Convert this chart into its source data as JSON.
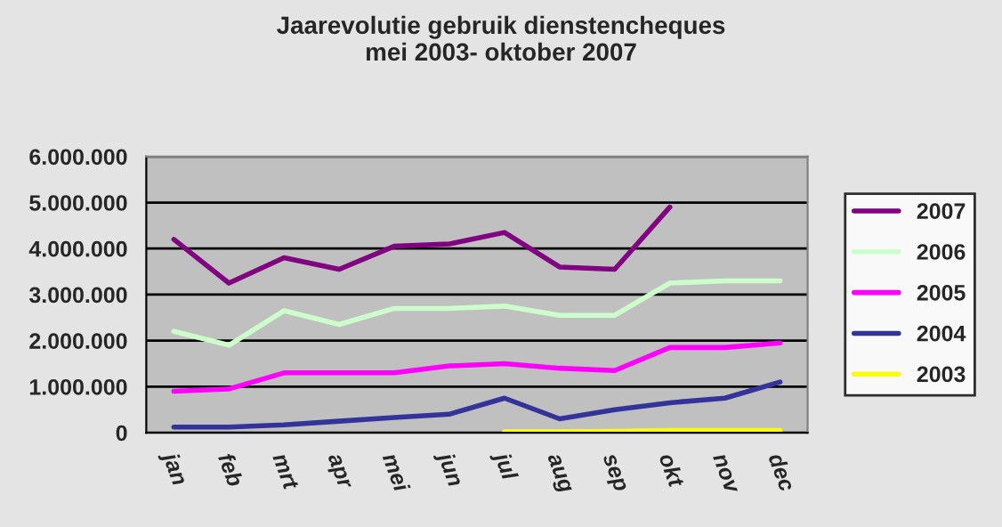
{
  "chart_data": {
    "type": "line",
    "title": "Jaarevolutie gebruik dienstencheques\nmei 2003- oktober 2007",
    "categories": [
      "jan",
      "feb",
      "mrt",
      "apr",
      "mei",
      "jun",
      "jul",
      "aug",
      "sep",
      "okt",
      "nov",
      "dec"
    ],
    "series": [
      {
        "name": "2007",
        "color": "#800080",
        "values": [
          4200000,
          3250000,
          3800000,
          3550000,
          4050000,
          4100000,
          4350000,
          3600000,
          3550000,
          4900000,
          null,
          null
        ]
      },
      {
        "name": "2006",
        "color": "#ccffcc",
        "values": [
          2200000,
          1900000,
          2650000,
          2350000,
          2700000,
          2700000,
          2750000,
          2550000,
          2550000,
          3250000,
          3300000,
          3300000
        ]
      },
      {
        "name": "2005",
        "color": "#ff00ff",
        "values": [
          900000,
          950000,
          1300000,
          1300000,
          1300000,
          1450000,
          1500000,
          1400000,
          1350000,
          1850000,
          1850000,
          1950000
        ]
      },
      {
        "name": "2004",
        "color": "#333399",
        "values": [
          120000,
          120000,
          170000,
          250000,
          330000,
          400000,
          750000,
          300000,
          500000,
          650000,
          750000,
          1100000
        ]
      },
      {
        "name": "2003",
        "color": "#ffff00",
        "values": [
          null,
          null,
          null,
          null,
          null,
          null,
          20000,
          20000,
          30000,
          50000,
          50000,
          50000
        ]
      }
    ],
    "ylim": [
      0,
      6000000
    ],
    "yticks": [
      {
        "value": 0,
        "label": "0"
      },
      {
        "value": 1000000,
        "label": "1.000.000"
      },
      {
        "value": 2000000,
        "label": "2.000.000"
      },
      {
        "value": 3000000,
        "label": "3.000.000"
      },
      {
        "value": 4000000,
        "label": "4.000.000"
      },
      {
        "value": 5000000,
        "label": "5.000.000"
      },
      {
        "value": 6000000,
        "label": "6.000.000"
      }
    ],
    "grid": "y",
    "legend": "right",
    "marker": "none",
    "line_style": "solid"
  }
}
